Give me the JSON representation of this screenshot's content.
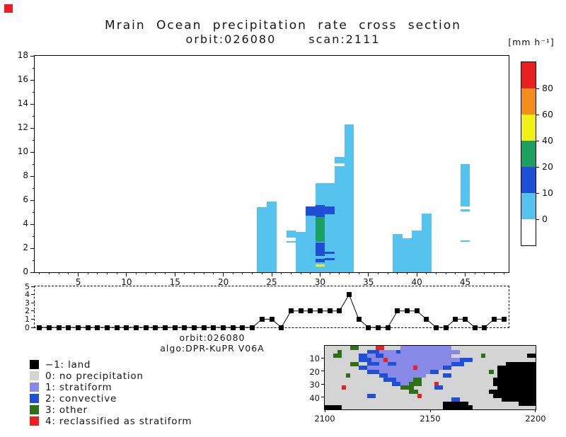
{
  "marker_color": "#ea1f1f",
  "title": {
    "main": "Mrain Ocean precipitation rate cross section",
    "orbit": "orbit:026080",
    "scan": "scan:2111"
  },
  "colorbar": {
    "unit": "[mm h⁻¹]",
    "segments": [
      {
        "color": "#ffffff",
        "boundary_label": "0"
      },
      {
        "color": "#55c3ee",
        "boundary_label": "10"
      },
      {
        "color": "#1f4fd6",
        "boundary_label": "20"
      },
      {
        "color": "#1ba05f",
        "boundary_label": "40"
      },
      {
        "color": "#f3f018",
        "boundary_label": "60"
      },
      {
        "color": "#f58c1e",
        "boundary_label": "80"
      },
      {
        "color": "#ea1f1f",
        "boundary_label": ""
      }
    ]
  },
  "captions": {
    "orbit": "orbit:026080",
    "algo": "algo:DPR-KuPR V06A"
  },
  "legend": {
    "items": [
      {
        "color": "#000000",
        "label": "−1: land"
      },
      {
        "color": "#d4d4d4",
        "label": "0: no precipitation"
      },
      {
        "color": "#8888e6",
        "label": "1: stratiform"
      },
      {
        "color": "#1f4fd6",
        "label": "2: convective"
      },
      {
        "color": "#2e7018",
        "label": "3: other"
      },
      {
        "color": "#ea1f1f",
        "label": "4: reclassified as stratiform"
      }
    ]
  },
  "chart_data": [
    {
      "type": "heatmap",
      "name": "precipitation-rate-cross-section",
      "title": "Mrain Ocean precipitation rate cross section",
      "subtitle": "orbit:026080 scan:2111",
      "unit": "mm h-1",
      "x_range": [
        0.5,
        49.5
      ],
      "y_range": [
        0,
        18
      ],
      "x_ticks": [
        5,
        10,
        15,
        20,
        25,
        30,
        35,
        40,
        45
      ],
      "y_ticks": [
        0,
        2,
        4,
        6,
        8,
        10,
        12,
        14,
        16,
        18
      ],
      "colors": {
        "light": "#55c3ee",
        "medium": "#1f4fd6",
        "heavy": "#1ba05f",
        "intense": "#f3f018",
        "gap": "#ffffff"
      },
      "columns": [
        {
          "x": 24,
          "segments": [
            {
              "from": 0,
              "to": 5.4,
              "c": "light"
            }
          ]
        },
        {
          "x": 25,
          "segments": [
            {
              "from": 0,
              "to": 5.9,
              "c": "light"
            }
          ]
        },
        {
          "x": 27,
          "segments": [
            {
              "from": 2.45,
              "to": 2.6,
              "c": "light"
            },
            {
              "from": 2.9,
              "to": 3.45,
              "c": "light"
            }
          ]
        },
        {
          "x": 28,
          "segments": [
            {
              "from": 0,
              "to": 3.35,
              "c": "light"
            }
          ]
        },
        {
          "x": 29,
          "segments": [
            {
              "from": 0,
              "to": 5.5,
              "c": "light"
            },
            {
              "from": 4.7,
              "to": 5.5,
              "c": "medium"
            }
          ]
        },
        {
          "x": 30,
          "segments": [
            {
              "from": 0,
              "to": 7.4,
              "c": "light"
            },
            {
              "from": 4.6,
              "to": 5.6,
              "c": "medium"
            },
            {
              "from": 2.5,
              "to": 4.6,
              "c": "heavy"
            },
            {
              "from": 1.35,
              "to": 2.5,
              "c": "medium"
            },
            {
              "from": 0.85,
              "to": 1.1,
              "c": "medium"
            },
            {
              "from": 0.45,
              "to": 0.62,
              "c": "intense"
            }
          ]
        },
        {
          "x": 31,
          "segments": [
            {
              "from": 0,
              "to": 7.4,
              "c": "light"
            },
            {
              "from": 4.8,
              "to": 5.5,
              "c": "medium"
            },
            {
              "from": 1.5,
              "to": 1.72,
              "c": "medium"
            },
            {
              "from": 1.0,
              "to": 1.2,
              "c": "medium"
            }
          ]
        },
        {
          "x": 32,
          "segments": [
            {
              "from": 0,
              "to": 9.6,
              "c": "light"
            },
            {
              "from": 8.85,
              "to": 9.05,
              "c": "gap"
            }
          ]
        },
        {
          "x": 33,
          "segments": [
            {
              "from": 0,
              "to": 12.3,
              "c": "light"
            }
          ]
        },
        {
          "x": 38,
          "segments": [
            {
              "from": 0,
              "to": 3.2,
              "c": "light"
            }
          ]
        },
        {
          "x": 39,
          "segments": [
            {
              "from": 0,
              "to": 2.85,
              "c": "light"
            }
          ]
        },
        {
          "x": 40,
          "segments": [
            {
              "from": 0,
              "to": 3.5,
              "c": "light"
            }
          ]
        },
        {
          "x": 41,
          "segments": [
            {
              "from": 0,
              "to": 4.9,
              "c": "light"
            }
          ]
        },
        {
          "x": 45,
          "segments": [
            {
              "from": 2.5,
              "to": 2.65,
              "c": "light"
            },
            {
              "from": 5.05,
              "to": 5.25,
              "c": "light"
            },
            {
              "from": 5.5,
              "to": 9.0,
              "c": "light"
            }
          ]
        }
      ]
    },
    {
      "type": "line",
      "name": "rain-type-flag-series",
      "x_range": [
        0.5,
        49.5
      ],
      "y_range": [
        0,
        5
      ],
      "y_ticks": [
        0,
        1,
        2,
        3,
        4,
        5
      ],
      "x_start": 1,
      "values": [
        0,
        0,
        0,
        0,
        0,
        0,
        0,
        0,
        0,
        0,
        0,
        0,
        0,
        0,
        0,
        0,
        0,
        0,
        0,
        0,
        0,
        0,
        0,
        1,
        1,
        0,
        2,
        2,
        2,
        2,
        2,
        2,
        4,
        1,
        0,
        0,
        0,
        2,
        2,
        2,
        1,
        0,
        0,
        1,
        1,
        0,
        0,
        1,
        1
      ]
    },
    {
      "type": "heatmap",
      "name": "rain-classification-map",
      "x_range": [
        2100,
        2200
      ],
      "y_range": [
        0.5,
        49.5
      ],
      "x_ticks": [
        2100,
        2150,
        2200
      ],
      "y_ticks": [
        10,
        20,
        30,
        40
      ],
      "palette": {
        "g": "#d4d4d4",
        "s": "#8888e6",
        "c": "#1f4fd6",
        "o": "#2e7018",
        "r": "#ea1f1f",
        "b": "#000000"
      },
      "rows": [
        "ggggggooggggrrggggssssssssssssgggggggggggggggggggg",
        "gggoggggggcccsssscssssssssssssssgggggggggggggggggg",
        "ggooggggccssccssssssssssssssssgggggggoggggggggggbb",
        "ggggggggcccsssrssssssssssssssssscccgggggggggggggggg",
        "ggggggooggcccssccssssssssssssscccggggggggggbbbbbbbb",
        "ggggggggccsssssssssssrssssssccgggggggggggbbbbbbbbb",
        "ggggggggggcccssssssssssssccggggggggggggogbbbbbbbbb",
        "gggggogggggg ccsssssssssggggccgggggggggggbbbbbbbbbb",
        "ggggggggggggggcccssssoogggggggggggggggggbbbbbbbbbbb",
        "ggggggggggggggggccssooogggrgggggggggggggbbbbbbbbbb",
        "ggggrgggggggggggggooogggg ccgggggggggggggbbbbbbbbbb",
        "ggggggggggggggggggggoogggggggggggggggggbbbbbbbbbbbb",
        "ggggggggggccggggggggggrgggggggggggggggggbbbbbbbbbb",
        "ggggggggggggggggggggggggggggggccggggggggggbbbbbbbb",
        "ggggggggggggggggggggggggggggbbbbbbggggggggggggbbbb",
        "bbbbggggggggggggggggggggggggbbbbbbbggggggggggggggg"
      ]
    }
  ]
}
